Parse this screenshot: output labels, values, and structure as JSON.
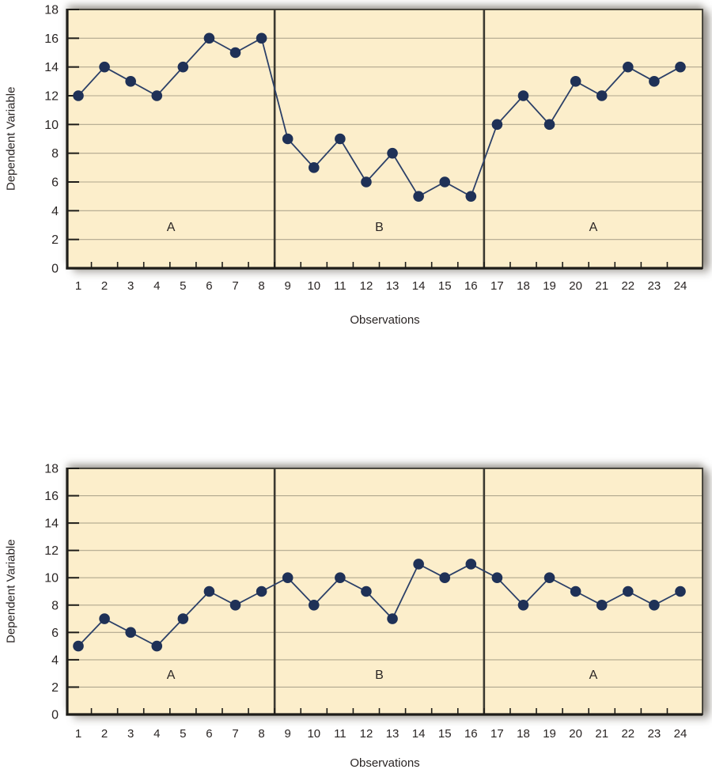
{
  "colors": {
    "plot_bg": "#FCEECB",
    "gridline": "#B0A78E",
    "frame": "#3B3931",
    "axis": "#1E1D19",
    "series_line": "#2C4068",
    "marker": "#1F3157",
    "text": "#2A2524"
  },
  "chart_data": [
    {
      "type": "line",
      "xlabel": "Observations",
      "ylabel": "Dependent Variable",
      "x": [
        1,
        2,
        3,
        4,
        5,
        6,
        7,
        8,
        9,
        10,
        11,
        12,
        13,
        14,
        15,
        16,
        17,
        18,
        19,
        20,
        21,
        22,
        23,
        24
      ],
      "values": [
        12,
        14,
        13,
        12,
        14,
        16,
        15,
        16,
        9,
        7,
        9,
        6,
        8,
        5,
        6,
        5,
        10,
        12,
        10,
        13,
        12,
        14,
        13,
        14
      ],
      "ylim": [
        0,
        18
      ],
      "yticks": [
        0,
        2,
        4,
        6,
        8,
        10,
        12,
        14,
        16,
        18
      ],
      "grid": true,
      "legend": "none",
      "phases": [
        {
          "label": "A",
          "start": 1,
          "end": 8
        },
        {
          "label": "B",
          "start": 9,
          "end": 16
        },
        {
          "label": "A",
          "start": 17,
          "end": 24
        }
      ],
      "phase_boundaries_after": [
        8,
        16
      ]
    },
    {
      "type": "line",
      "xlabel": "Observations",
      "ylabel": "Dependent Variable",
      "x": [
        1,
        2,
        3,
        4,
        5,
        6,
        7,
        8,
        9,
        10,
        11,
        12,
        13,
        14,
        15,
        16,
        17,
        18,
        19,
        20,
        21,
        22,
        23,
        24
      ],
      "values": [
        5,
        7,
        6,
        5,
        7,
        9,
        8,
        9,
        10,
        8,
        10,
        9,
        7,
        11,
        10,
        11,
        10,
        8,
        10,
        9,
        8,
        9,
        8,
        9
      ],
      "ylim": [
        0,
        18
      ],
      "yticks": [
        0,
        2,
        4,
        6,
        8,
        10,
        12,
        14,
        16,
        18
      ],
      "grid": true,
      "legend": "none",
      "phases": [
        {
          "label": "A",
          "start": 1,
          "end": 8
        },
        {
          "label": "B",
          "start": 9,
          "end": 16
        },
        {
          "label": "A",
          "start": 17,
          "end": 24
        }
      ],
      "phase_boundaries_after": [
        8,
        16
      ]
    }
  ]
}
